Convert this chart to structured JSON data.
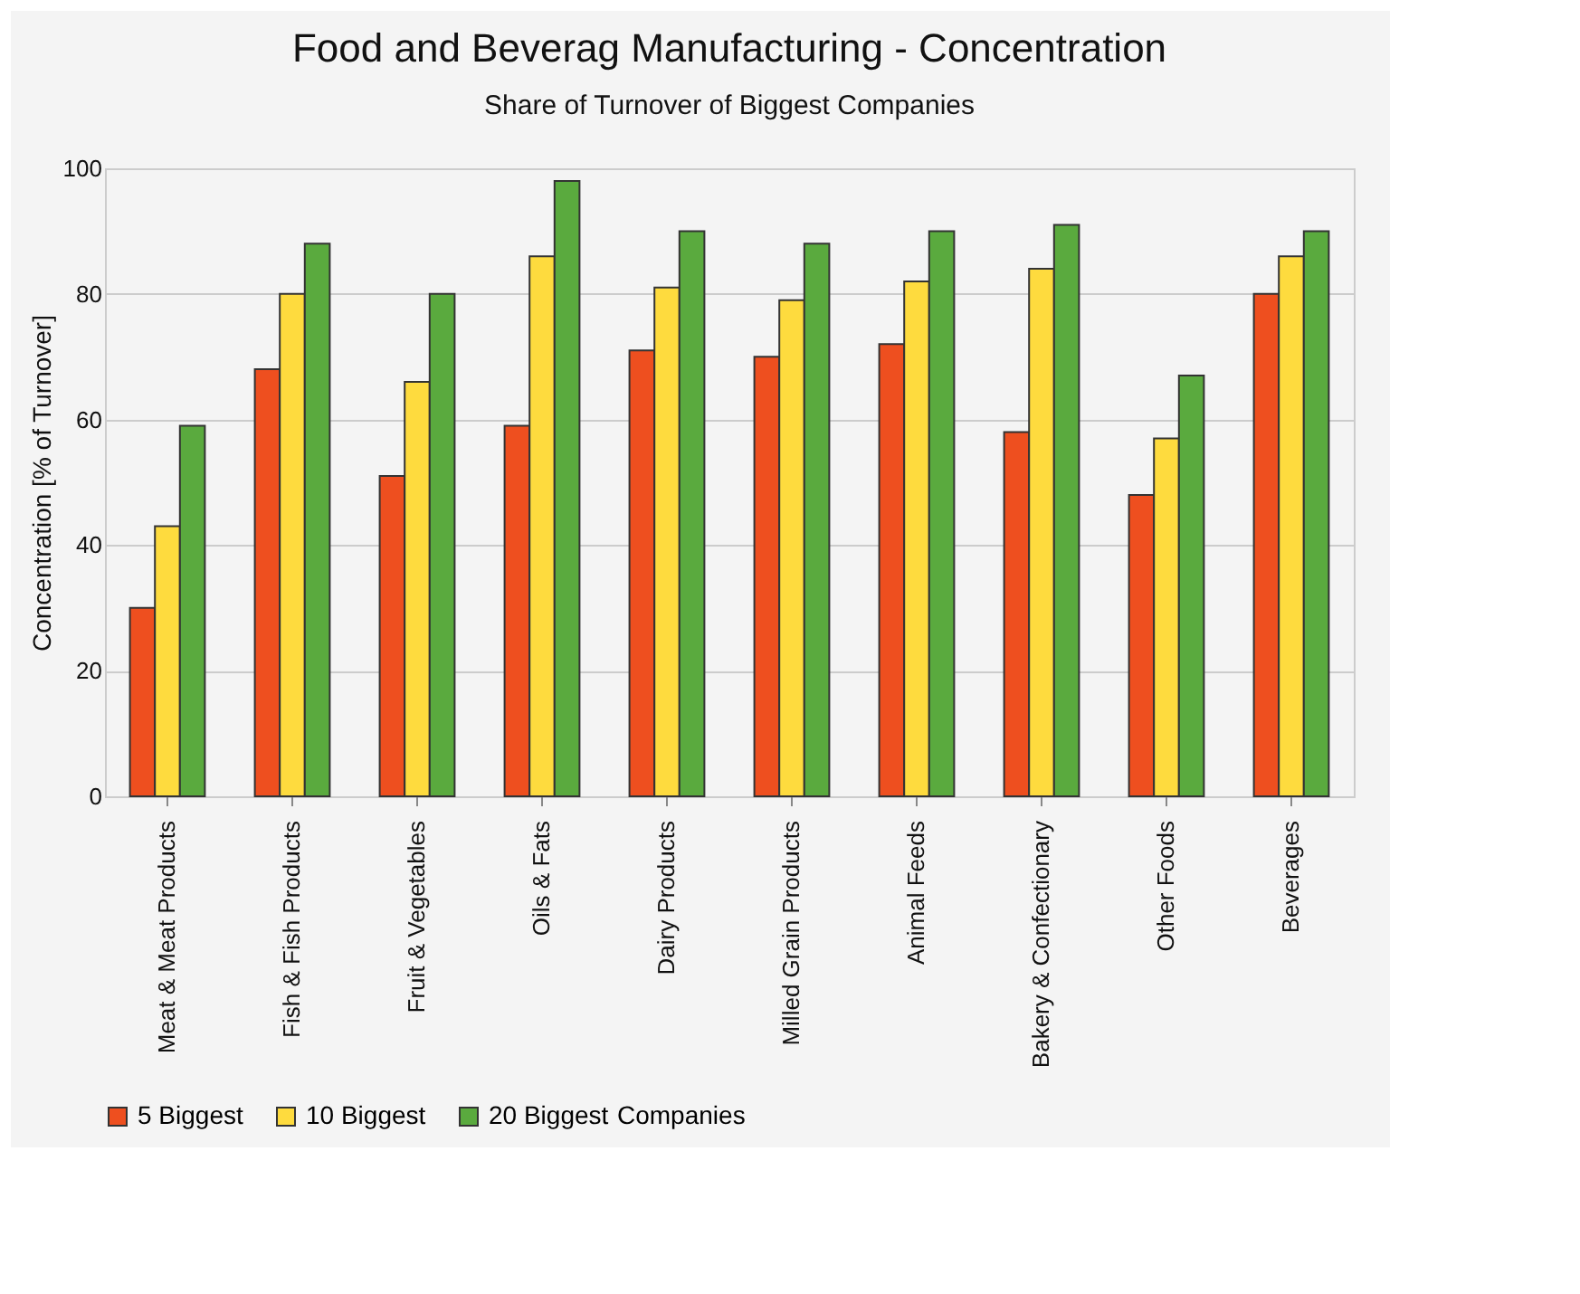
{
  "chart_data": {
    "type": "bar",
    "title": "Food and Beverag Manufacturing - Concentration",
    "subtitle": "Share of Turnover of Biggest Companies",
    "ylabel": "Concentration [% of Turnover]",
    "legend_title": "Companies",
    "categories": [
      "Meat & Meat Products",
      "Fish & Fish Products",
      "Fruit & Vegetables",
      "Oils & Fats",
      "Dairy Products",
      "Milled Grain Products",
      "Animal Feeds",
      "Bakery & Confectionary",
      "Other Foods",
      "Beverages"
    ],
    "series": [
      {
        "name": "5 Biggest",
        "color": "#ee4f1f",
        "values": [
          30,
          68,
          51,
          59,
          71,
          70,
          72,
          58,
          48,
          80
        ]
      },
      {
        "name": "10 Biggest",
        "color": "#fedb3e",
        "values": [
          43,
          80,
          66,
          86,
          81,
          79,
          82,
          84,
          57,
          86
        ]
      },
      {
        "name": "20 Biggest",
        "color": "#5aaa3e",
        "values": [
          59,
          88,
          80,
          98,
          90,
          88,
          90,
          91,
          67,
          90
        ]
      }
    ],
    "ylim": [
      0,
      100
    ],
    "yticks": [
      0,
      20,
      40,
      60,
      80,
      100
    ],
    "grid": "y",
    "legend": "bottom"
  }
}
